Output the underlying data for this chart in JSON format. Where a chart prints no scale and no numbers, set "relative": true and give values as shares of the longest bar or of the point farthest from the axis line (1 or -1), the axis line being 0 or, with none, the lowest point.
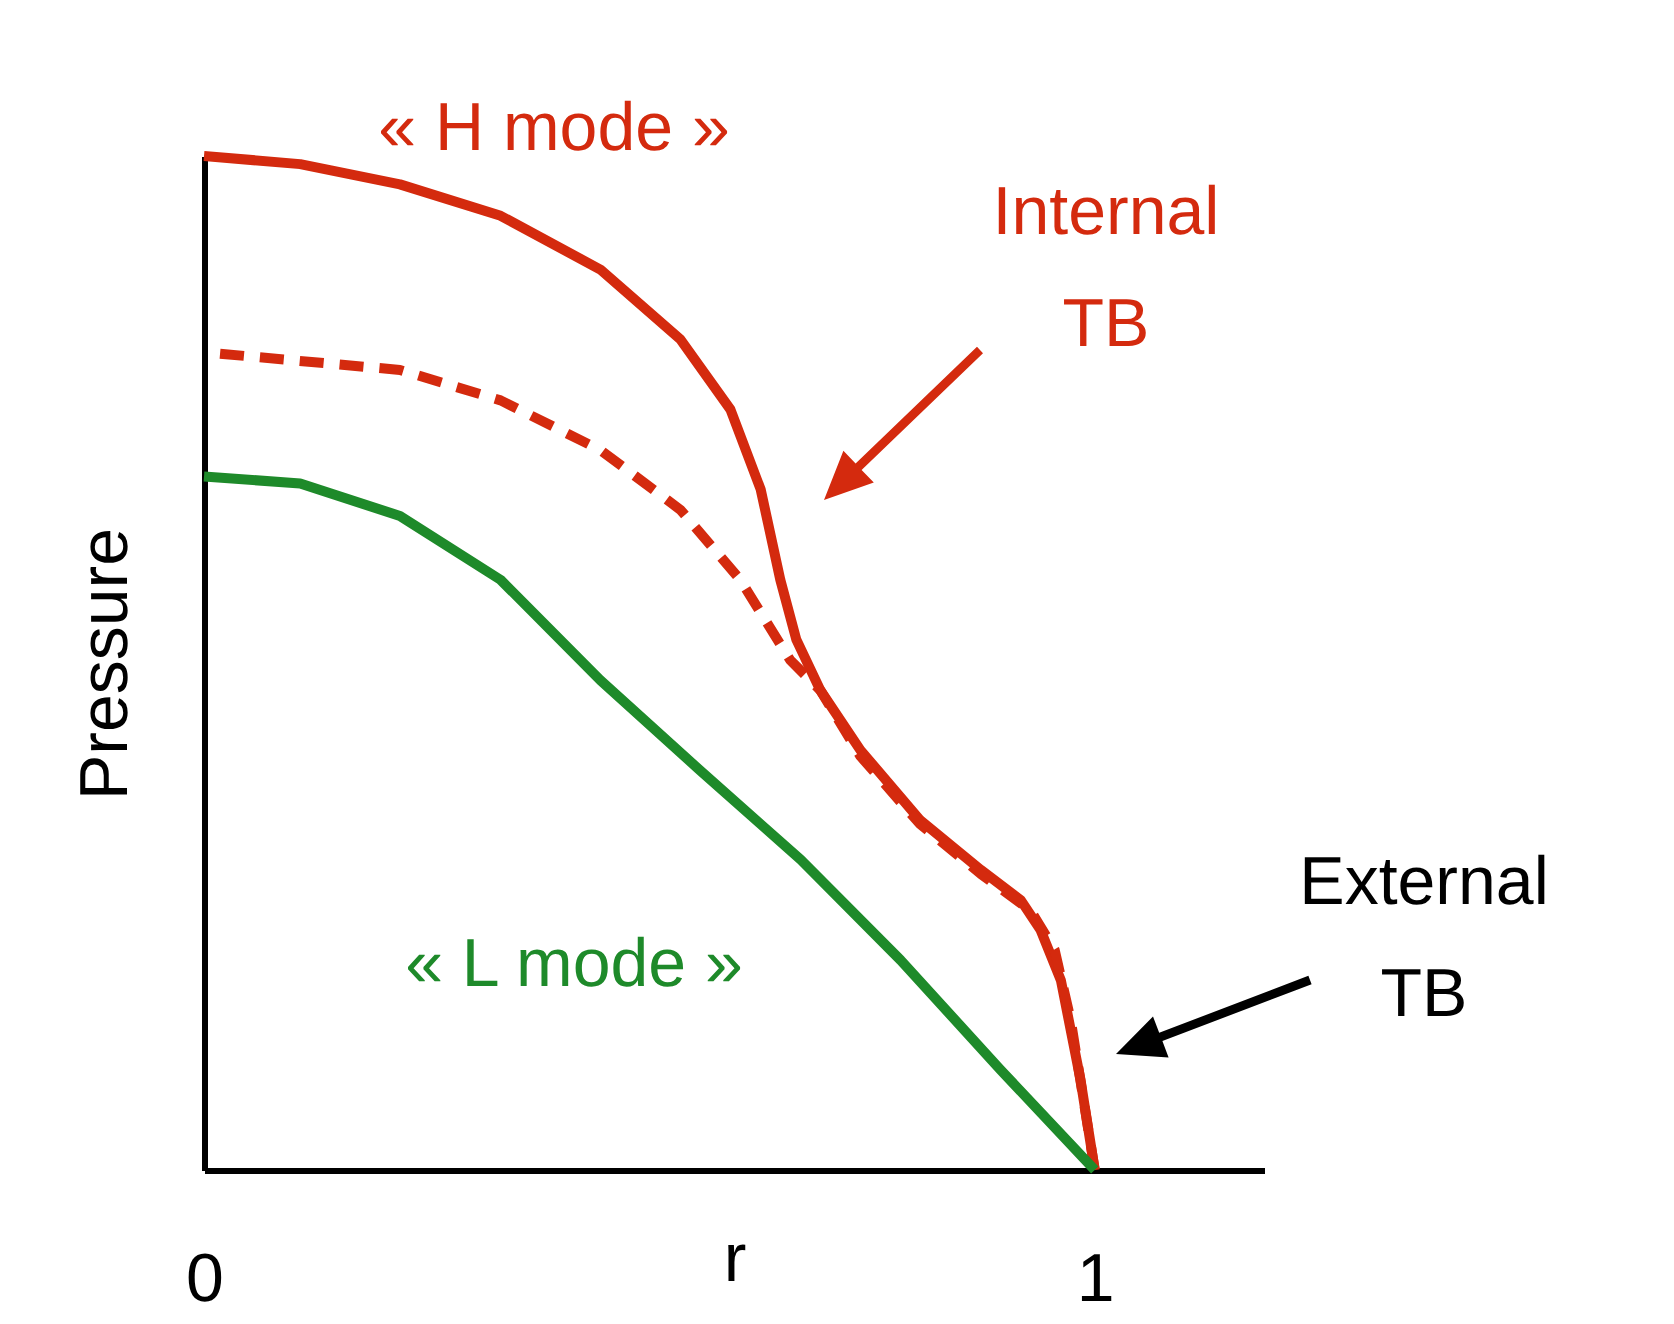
{
  "chart_data": {
    "type": "line",
    "relative": true,
    "xlabel": "r",
    "ylabel": "Pressure",
    "xlim": [
      0,
      1.19
    ],
    "xticks": [
      0,
      1
    ],
    "tick_labels": "x",
    "grid": false,
    "legend": false,
    "marker": "none",
    "series": [
      {
        "name": "« H mode »",
        "color": "#d42a0e",
        "line_style": "solid",
        "x": [
          0,
          0.108,
          0.22,
          0.333,
          0.445,
          0.535,
          0.591,
          0.625,
          0.647,
          0.665,
          0.692,
          0.737,
          0.804,
          0.872,
          0.917,
          0.939,
          0.962,
          0.984,
          1
        ],
        "values": [
          1,
          0.992,
          0.972,
          0.941,
          0.888,
          0.819,
          0.75,
          0.671,
          0.582,
          0.523,
          0.473,
          0.414,
          0.345,
          0.296,
          0.266,
          0.237,
          0.187,
          0.089,
          0
        ]
      },
      {
        "color": "#d42a0e",
        "line_style": "dashed",
        "x": [
          0.018,
          0.22,
          0.333,
          0.445,
          0.535,
          0.602,
          0.658,
          0.692,
          0.737,
          0.804,
          0.872,
          0.928,
          0.955,
          0.973,
          1
        ],
        "values": [
          0.805,
          0.789,
          0.759,
          0.71,
          0.651,
          0.582,
          0.503,
          0.473,
          0.408,
          0.341,
          0.292,
          0.256,
          0.217,
          0.148,
          0
        ]
      },
      {
        "name": "« L mode »",
        "color": "#1e8a2a",
        "line_style": "solid",
        "x": [
          0,
          0.108,
          0.22,
          0.333,
          0.445,
          0.557,
          0.67,
          0.782,
          0.894,
          1
        ],
        "values": [
          0.684,
          0.677,
          0.645,
          0.582,
          0.483,
          0.394,
          0.306,
          0.207,
          0.099,
          0
        ]
      }
    ],
    "annotations": [
      "Internal TB",
      "External TB"
    ]
  }
}
